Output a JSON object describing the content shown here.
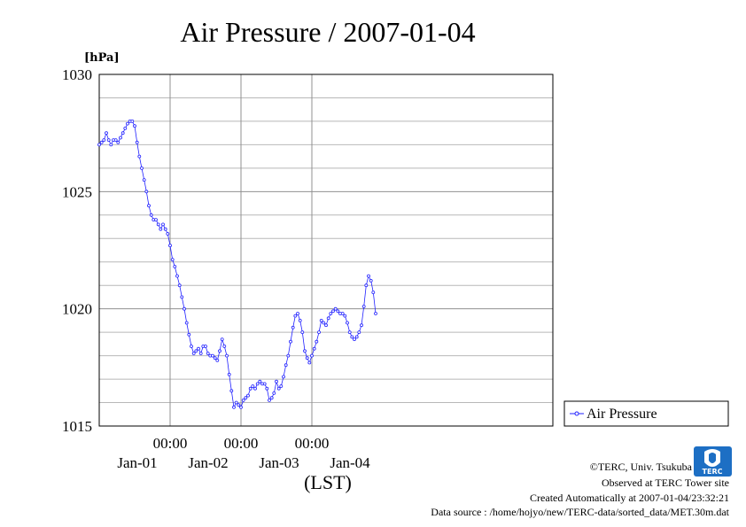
{
  "header": {
    "title": "Air Pressure / 2007-01-04"
  },
  "logo": {
    "text": "TERC"
  },
  "credits": {
    "line1": "©TERC, Univ. Tsukuba",
    "line2": "Observed at TERC Tower site",
    "line3": "Created Automatically at 2007-01-04/23:32:21",
    "line4": "Data source : /home/hojyo/new/TERC-data/sorted_data/MET.30m.dat"
  },
  "chart_data": {
    "type": "line",
    "title": "Air Pressure / 2007-01-04",
    "ylabel": "[hPa]",
    "xlabel": "(LST)",
    "ylim": [
      1015,
      1030
    ],
    "xlim": [
      0,
      192
    ],
    "y_ticks": [
      1015,
      1020,
      1025,
      1030
    ],
    "x_tick_labels": [
      {
        "x": 30,
        "label": "00:00"
      },
      {
        "x": 60,
        "label": "00:00"
      },
      {
        "x": 90,
        "label": "00:00"
      }
    ],
    "date_labels": [
      {
        "x": 15,
        "label": "Jan-01"
      },
      {
        "x": 45,
        "label": "Jan-02"
      },
      {
        "x": 75,
        "label": "Jan-03"
      },
      {
        "x": 105,
        "label": "Jan-04"
      }
    ],
    "grid": true,
    "legend_position": "right",
    "series": [
      {
        "name": "Air Pressure",
        "color": "#2020ff",
        "x": [
          0,
          1,
          2,
          3,
          4,
          5,
          6,
          7,
          8,
          9,
          10,
          11,
          12,
          13,
          14,
          15,
          16,
          17,
          18,
          19,
          20,
          21,
          22,
          23,
          24,
          25,
          26,
          27,
          28,
          29,
          30,
          31,
          32,
          33,
          34,
          35,
          36,
          37,
          38,
          39,
          40,
          41,
          42,
          43,
          44,
          45,
          46,
          47,
          48,
          49,
          50,
          51,
          52,
          53,
          54,
          55,
          56,
          57,
          58,
          59,
          60,
          61,
          62,
          63,
          64,
          65,
          66,
          67,
          68,
          69,
          70,
          71,
          72,
          73,
          74,
          75,
          76,
          77,
          78,
          79,
          80,
          81,
          82,
          83,
          84,
          85,
          86,
          87,
          88,
          89,
          90,
          91,
          92,
          93,
          94,
          95,
          96,
          97,
          98,
          99,
          100,
          101,
          102,
          103,
          104,
          105,
          106,
          107,
          108,
          109,
          110,
          111,
          112,
          113,
          114,
          115,
          116,
          117
        ],
        "values": [
          1027.0,
          1027.1,
          1027.2,
          1027.5,
          1027.2,
          1027.0,
          1027.2,
          1027.2,
          1027.1,
          1027.3,
          1027.5,
          1027.7,
          1027.9,
          1028.0,
          1028.0,
          1027.8,
          1027.1,
          1026.5,
          1026.0,
          1025.5,
          1025.0,
          1024.4,
          1024.0,
          1023.8,
          1023.8,
          1023.6,
          1023.4,
          1023.6,
          1023.4,
          1023.2,
          1022.7,
          1022.1,
          1021.8,
          1021.4,
          1021.0,
          1020.5,
          1020.0,
          1019.4,
          1018.9,
          1018.4,
          1018.1,
          1018.2,
          1018.3,
          1018.1,
          1018.4,
          1018.4,
          1018.1,
          1018.0,
          1018.0,
          1017.9,
          1017.8,
          1018.2,
          1018.7,
          1018.4,
          1018.0,
          1017.2,
          1016.5,
          1015.8,
          1016.0,
          1015.9,
          1015.8,
          1016.1,
          1016.2,
          1016.3,
          1016.6,
          1016.7,
          1016.6,
          1016.8,
          1016.9,
          1016.8,
          1016.8,
          1016.6,
          1016.1,
          1016.2,
          1016.4,
          1016.9,
          1016.6,
          1016.7,
          1017.1,
          1017.6,
          1018.0,
          1018.6,
          1019.2,
          1019.7,
          1019.8,
          1019.5,
          1019.0,
          1018.2,
          1017.9,
          1017.7,
          1018.0,
          1018.3,
          1018.6,
          1019.0,
          1019.5,
          1019.4,
          1019.3,
          1019.6,
          1019.8,
          1019.9,
          1020.0,
          1019.9,
          1019.8,
          1019.8,
          1019.7,
          1019.4,
          1019.0,
          1018.8,
          1018.7,
          1018.8,
          1019.0,
          1019.3,
          1020.1,
          1021.0,
          1021.4,
          1021.2,
          1020.7,
          1019.8
        ]
      }
    ]
  }
}
